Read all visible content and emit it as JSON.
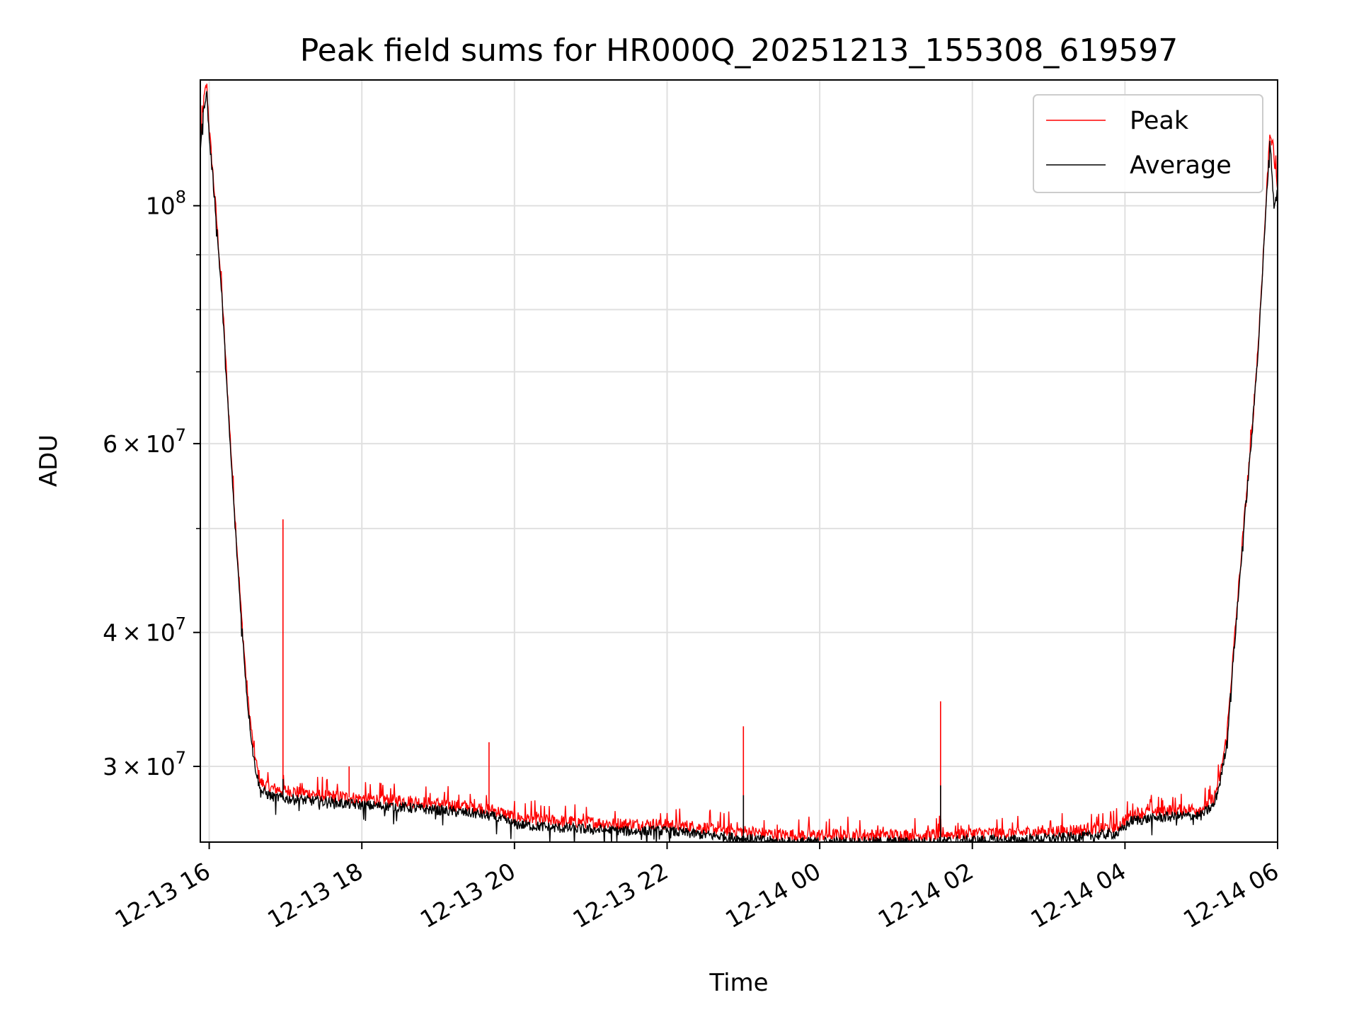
{
  "chart_data": {
    "type": "line",
    "title": "Peak field sums for HR000Q_20251213_155308_619597",
    "xlabel": "Time",
    "ylabel": "ADU",
    "x_scale": "time",
    "y_scale": "log",
    "xlim": [
      "2025-12-13 15:53",
      "2025-12-14 06:00"
    ],
    "ylim": [
      25500000,
      131000000
    ],
    "grid": true,
    "legend_position": "upper right",
    "x_ticks": [
      {
        "label": "12-13 16",
        "value": "2025-12-13 16:00"
      },
      {
        "label": "12-13 18",
        "value": "2025-12-13 18:00"
      },
      {
        "label": "12-13 20",
        "value": "2025-12-13 20:00"
      },
      {
        "label": "12-13 22",
        "value": "2025-12-13 22:00"
      },
      {
        "label": "12-14 00",
        "value": "2025-12-14 00:00"
      },
      {
        "label": "12-14 02",
        "value": "2025-12-14 02:00"
      },
      {
        "label": "12-14 04",
        "value": "2025-12-14 04:00"
      },
      {
        "label": "12-14 06",
        "value": "2025-12-14 06:00"
      }
    ],
    "y_ticks": [
      {
        "base": "3",
        "times": "×",
        "mant": "10",
        "exp": "7",
        "value": 30000000
      },
      {
        "base": "4",
        "times": "×",
        "mant": "10",
        "exp": "7",
        "value": 40000000
      },
      {
        "base": "6",
        "times": "×",
        "mant": "10",
        "exp": "7",
        "value": 60000000
      },
      {
        "base": "",
        "times": "",
        "mant": "10",
        "exp": "8",
        "value": 100000000
      }
    ],
    "y_minor_ticks": [
      50000000,
      70000000,
      80000000,
      90000000
    ],
    "series": [
      {
        "name": "Peak",
        "color": "#ff0000",
        "x": [
          "2025-12-13 15:53",
          "2025-12-13 15:56",
          "2025-12-13 15:58",
          "2025-12-13 16:00",
          "2025-12-13 16:05",
          "2025-12-13 16:10",
          "2025-12-13 16:15",
          "2025-12-13 16:20",
          "2025-12-13 16:25",
          "2025-12-13 16:30",
          "2025-12-13 16:35",
          "2025-12-13 16:40",
          "2025-12-13 16:50",
          "2025-12-13 17:00",
          "2025-12-13 17:30",
          "2025-12-13 18:00",
          "2025-12-13 18:30",
          "2025-12-13 19:00",
          "2025-12-13 19:30",
          "2025-12-13 19:45",
          "2025-12-13 20:00",
          "2025-12-13 20:30",
          "2025-12-13 21:00",
          "2025-12-13 21:30",
          "2025-12-13 22:00",
          "2025-12-13 22:30",
          "2025-12-13 23:00",
          "2025-12-13 23:30",
          "2025-12-14 00:00",
          "2025-12-14 00:30",
          "2025-12-14 01:00",
          "2025-12-14 01:30",
          "2025-12-14 02:00",
          "2025-12-14 02:30",
          "2025-12-14 03:00",
          "2025-12-14 03:30",
          "2025-12-14 03:55",
          "2025-12-14 04:05",
          "2025-12-14 04:30",
          "2025-12-14 05:00",
          "2025-12-14 05:10",
          "2025-12-14 05:15",
          "2025-12-14 05:20",
          "2025-12-14 05:25",
          "2025-12-14 05:30",
          "2025-12-14 05:35",
          "2025-12-14 05:40",
          "2025-12-14 05:45",
          "2025-12-14 05:50",
          "2025-12-14 05:54",
          "2025-12-14 05:57",
          "2025-12-14 06:00"
        ],
        "y": [
          115000000,
          126000000,
          130000000,
          118000000,
          100000000,
          83000000,
          65000000,
          52000000,
          42000000,
          35000000,
          31000000,
          29000000,
          28600000,
          28500000,
          28200000,
          28000000,
          27900000,
          27700000,
          27500000,
          27300000,
          26900000,
          26700000,
          26600000,
          26500000,
          26500000,
          26300000,
          26100000,
          25900000,
          25900000,
          25900000,
          25900000,
          25900000,
          26000000,
          26000000,
          26100000,
          26200000,
          26400000,
          27100000,
          27300000,
          27400000,
          28000000,
          29500000,
          32000000,
          38000000,
          45000000,
          53000000,
          62000000,
          75000000,
          96000000,
          118000000,
          111000000,
          104000000
        ],
        "spikes": [
          {
            "x": "2025-12-13 16:58",
            "y": 51000000
          },
          {
            "x": "2025-12-13 17:50",
            "y": 30000000
          },
          {
            "x": "2025-12-13 19:40",
            "y": 31600000
          },
          {
            "x": "2025-12-13 23:00",
            "y": 32700000
          },
          {
            "x": "2025-12-14 01:35",
            "y": 34500000
          }
        ]
      },
      {
        "name": "Average",
        "color": "#000000",
        "x": [
          "2025-12-13 15:53",
          "2025-12-13 15:56",
          "2025-12-13 15:58",
          "2025-12-13 16:00",
          "2025-12-13 16:05",
          "2025-12-13 16:10",
          "2025-12-13 16:15",
          "2025-12-13 16:20",
          "2025-12-13 16:25",
          "2025-12-13 16:30",
          "2025-12-13 16:35",
          "2025-12-13 16:40",
          "2025-12-13 16:50",
          "2025-12-13 17:00",
          "2025-12-13 17:30",
          "2025-12-13 18:00",
          "2025-12-13 18:30",
          "2025-12-13 19:00",
          "2025-12-13 19:30",
          "2025-12-13 19:45",
          "2025-12-13 20:00",
          "2025-12-13 20:30",
          "2025-12-13 21:00",
          "2025-12-13 21:30",
          "2025-12-13 22:00",
          "2025-12-13 22:30",
          "2025-12-13 23:00",
          "2025-12-13 23:30",
          "2025-12-14 00:00",
          "2025-12-14 00:30",
          "2025-12-14 01:00",
          "2025-12-14 01:30",
          "2025-12-14 02:00",
          "2025-12-14 02:30",
          "2025-12-14 03:00",
          "2025-12-14 03:30",
          "2025-12-14 03:55",
          "2025-12-14 04:05",
          "2025-12-14 04:30",
          "2025-12-14 05:00",
          "2025-12-14 05:10",
          "2025-12-14 05:15",
          "2025-12-14 05:20",
          "2025-12-14 05:25",
          "2025-12-14 05:30",
          "2025-12-14 05:35",
          "2025-12-14 05:40",
          "2025-12-14 05:45",
          "2025-12-14 05:50",
          "2025-12-14 05:54",
          "2025-12-14 05:57",
          "2025-12-14 06:00"
        ],
        "y": [
          113000000,
          124000000,
          128000000,
          116000000,
          99000000,
          82000000,
          64000000,
          51000000,
          41500000,
          34500000,
          30500000,
          28500000,
          28100000,
          28000000,
          27800000,
          27600000,
          27500000,
          27300000,
          27100000,
          26900000,
          26500000,
          26300000,
          26200000,
          26100000,
          26100000,
          25900000,
          25700000,
          25500000,
          25500000,
          25500000,
          25500000,
          25500000,
          25600000,
          25600000,
          25700000,
          25800000,
          26000000,
          26700000,
          26900000,
          27000000,
          27600000,
          29100000,
          31500000,
          37500000,
          44500000,
          52500000,
          61500000,
          74500000,
          95000000,
          116000000,
          100000000,
          103000000
        ],
        "spikes": [
          {
            "x": "2025-12-13 16:58",
            "y": 29200000
          },
          {
            "x": "2025-12-13 23:00",
            "y": 28200000
          },
          {
            "x": "2025-12-14 01:35",
            "y": 28800000
          }
        ]
      }
    ]
  }
}
